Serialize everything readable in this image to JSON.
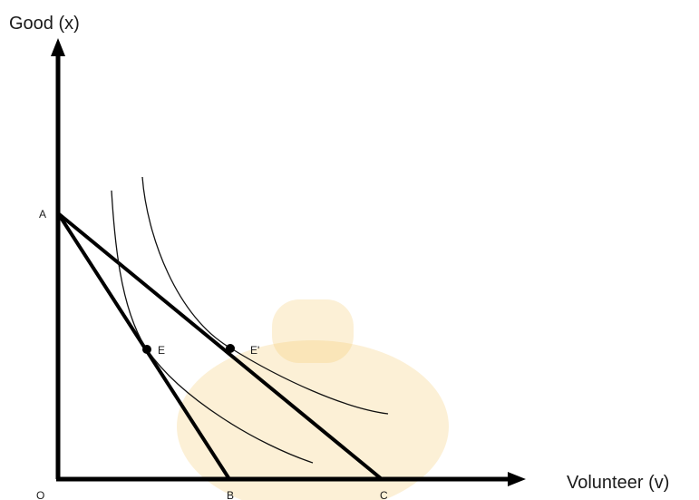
{
  "axes": {
    "y_title": "Good (x)",
    "x_title": "Volunteer (v)",
    "origin_label": "O"
  },
  "points": {
    "A": "A",
    "B": "B",
    "C": "C",
    "E": "E",
    "E_prime": "E'"
  },
  "lines": [
    {
      "from": "A",
      "to": "B"
    },
    {
      "from": "A",
      "to": "C"
    }
  ],
  "curves": [
    {
      "tangent_at": "E",
      "tangent_to": "AB"
    },
    {
      "tangent_at": "E'",
      "tangent_to": "AC"
    }
  ],
  "colors": {
    "ink": "#000000",
    "watermark": "#f5c96a"
  }
}
